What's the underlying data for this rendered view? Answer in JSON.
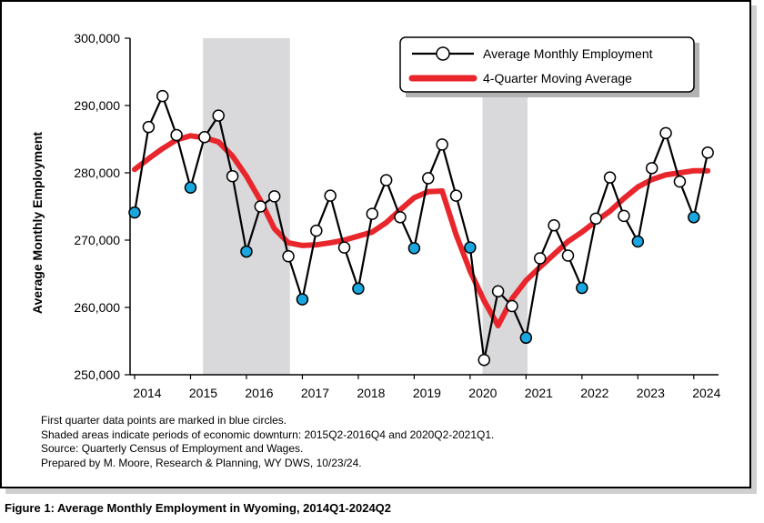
{
  "chart_data": {
    "type": "line",
    "title": "",
    "xlabel": "",
    "ylabel": "Average Monthly Employment",
    "ylim": [
      250000,
      300000
    ],
    "y_ticks": [
      250000,
      260000,
      270000,
      280000,
      290000,
      300000
    ],
    "y_tick_labels": [
      "250,000",
      "260,000",
      "270,000",
      "280,000",
      "290,000",
      "300,000"
    ],
    "x_tick_labels": [
      "2014",
      "2015",
      "2016",
      "2017",
      "2018",
      "2019",
      "2020",
      "2021",
      "2022",
      "2023",
      "2024"
    ],
    "grid": false,
    "legend_position": "top-right",
    "quarters": [
      "2014Q1",
      "2014Q2",
      "2014Q3",
      "2014Q4",
      "2015Q1",
      "2015Q2",
      "2015Q3",
      "2015Q4",
      "2016Q1",
      "2016Q2",
      "2016Q3",
      "2016Q4",
      "2017Q1",
      "2017Q2",
      "2017Q3",
      "2017Q4",
      "2018Q1",
      "2018Q2",
      "2018Q3",
      "2018Q4",
      "2019Q1",
      "2019Q2",
      "2019Q3",
      "2019Q4",
      "2020Q1",
      "2020Q2",
      "2020Q3",
      "2020Q4",
      "2021Q1",
      "2021Q2",
      "2021Q3",
      "2021Q4",
      "2022Q1",
      "2022Q2",
      "2022Q3",
      "2022Q4",
      "2023Q1",
      "2023Q2",
      "2023Q3",
      "2023Q4",
      "2024Q1",
      "2024Q2"
    ],
    "shaded_periods": [
      {
        "start": "2015Q2",
        "end": "2016Q4"
      },
      {
        "start": "2020Q2",
        "end": "2021Q1"
      }
    ],
    "series": [
      {
        "name": "Average Monthly Employment",
        "color": "#000000",
        "marker": "circle",
        "first_quarter_marker_color": "#1aa7e0",
        "values": [
          274100,
          286800,
          291400,
          285600,
          277800,
          285300,
          288500,
          279500,
          268300,
          275000,
          276500,
          267600,
          261200,
          271400,
          276600,
          268900,
          262800,
          273900,
          278900,
          273400,
          268800,
          279200,
          284200,
          276600,
          268900,
          252200,
          262400,
          260200,
          255500,
          267300,
          272200,
          267700,
          262900,
          273200,
          279300,
          273600,
          269800,
          280700,
          285900,
          278700,
          273400,
          283000
        ]
      },
      {
        "name": "4-Quarter Moving Average",
        "color": "#e8262b",
        "values": [
          280500,
          282100,
          283600,
          284900,
          285500,
          285200,
          284600,
          282500,
          279500,
          275900,
          271700,
          269600,
          269200,
          269300,
          269600,
          270000,
          270600,
          271200,
          272600,
          274500,
          276300,
          277200,
          277300,
          270800,
          265400,
          261000,
          257300,
          261300,
          264000,
          266000,
          267900,
          269800,
          271200,
          272800,
          274300,
          276200,
          277900,
          279000,
          279700,
          280000,
          280300,
          280300
        ]
      }
    ]
  },
  "notes": [
    "First quarter data points are marked in blue circles.",
    "Shaded areas indicate periods of economic downturn: 2015Q2-2016Q4 and 2020Q2-2021Q1.",
    "Source: Quarterly Census of Employment and Wages.",
    "Prepared by M. Moore, Research & Planning, WY DWS, 10/23/24."
  ],
  "caption": "Figure 1: Average Monthly Employment in Wyoming, 2014Q1-2024Q2"
}
